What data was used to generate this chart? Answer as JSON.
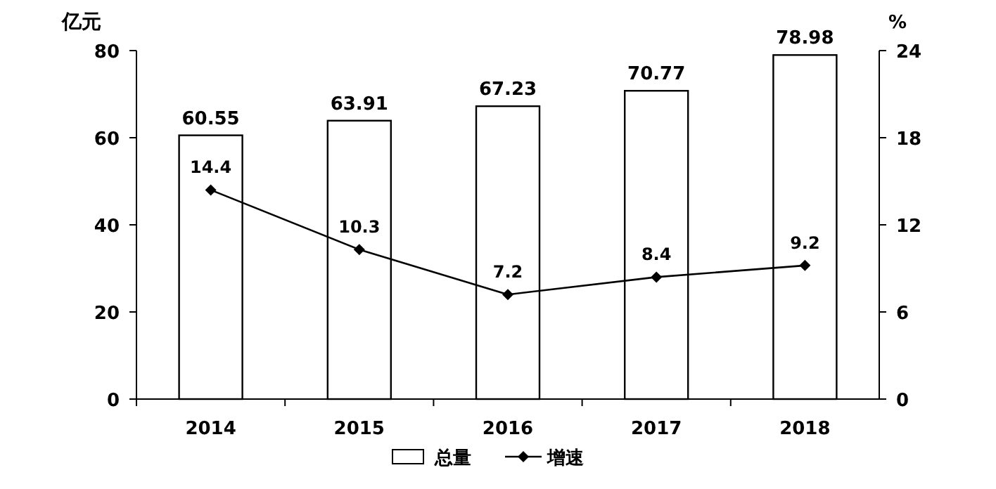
{
  "chart_data": {
    "type": "bar",
    "categories": [
      "2014",
      "2015",
      "2016",
      "2017",
      "2018"
    ],
    "ylabel": "亿元",
    "y2label": "%",
    "ylim": [
      0,
      80
    ],
    "yticks": [
      0,
      20,
      40,
      60,
      80
    ],
    "y2lim": [
      0,
      24
    ],
    "y2ticks": [
      0,
      6,
      12,
      18,
      24
    ],
    "series": [
      {
        "name": "总量",
        "color": "#ffffff",
        "values": [
          60.55,
          63.91,
          67.23,
          70.77,
          78.98
        ]
      },
      {
        "name": "增速",
        "type": "line",
        "axis": "y2",
        "color": "#000000",
        "values": [
          14.4,
          10.3,
          7.2,
          8.4,
          9.2
        ]
      }
    ],
    "data_labels": true,
    "legend": "bottom",
    "grid": false,
    "marker": "diamond"
  }
}
